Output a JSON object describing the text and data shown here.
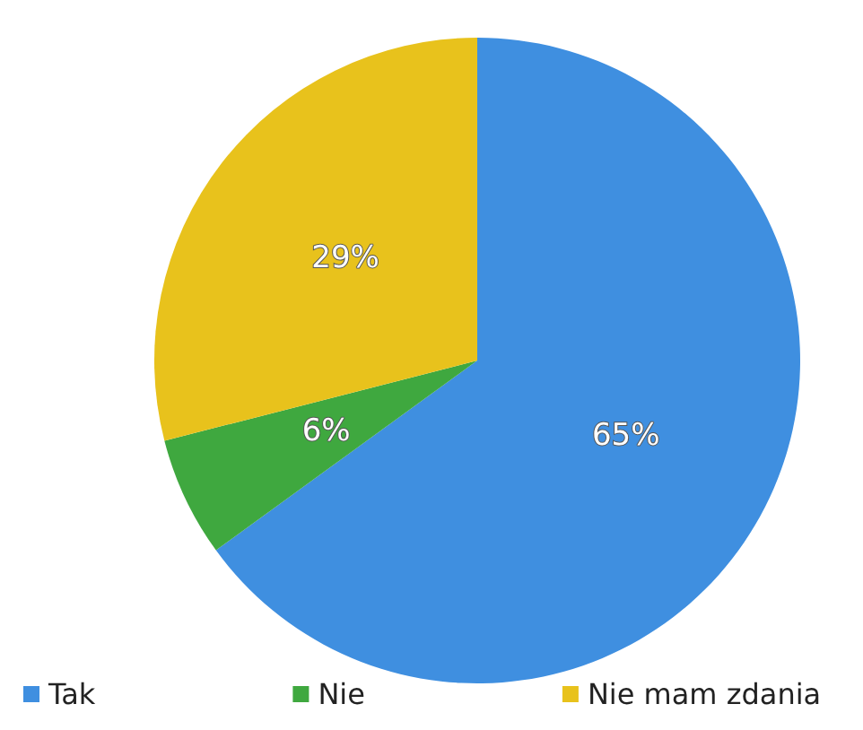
{
  "chart_data": {
    "type": "pie",
    "categories": [
      "Tak",
      "Nie",
      "Nie mam zdania"
    ],
    "values": [
      65,
      6,
      29
    ],
    "colors": [
      "#3f8fe0",
      "#3fa83f",
      "#e8c21c"
    ],
    "value_labels": [
      "65%",
      "6%",
      "29%"
    ],
    "legend": "bottom"
  }
}
